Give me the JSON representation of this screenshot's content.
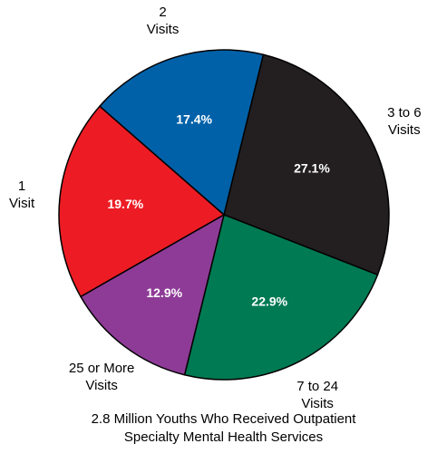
{
  "chart_data": {
    "type": "pie",
    "title": "2.8 Million Youths Who Received Outpatient\nSpecialty Mental Health Services",
    "categories": [
      "3 to 6\nVisits",
      "7 to 24\nVisits",
      "25 or More\nVisits",
      "1\nVisit",
      "2\nVisits"
    ],
    "values": [
      27.1,
      22.9,
      12.9,
      19.7,
      17.4
    ],
    "value_labels": [
      "27.1%",
      "22.9%",
      "12.9%",
      "19.7%",
      "17.4%"
    ],
    "colors": [
      "#231f20",
      "#007a53",
      "#8e3b97",
      "#ed1c24",
      "#0061a8"
    ]
  }
}
